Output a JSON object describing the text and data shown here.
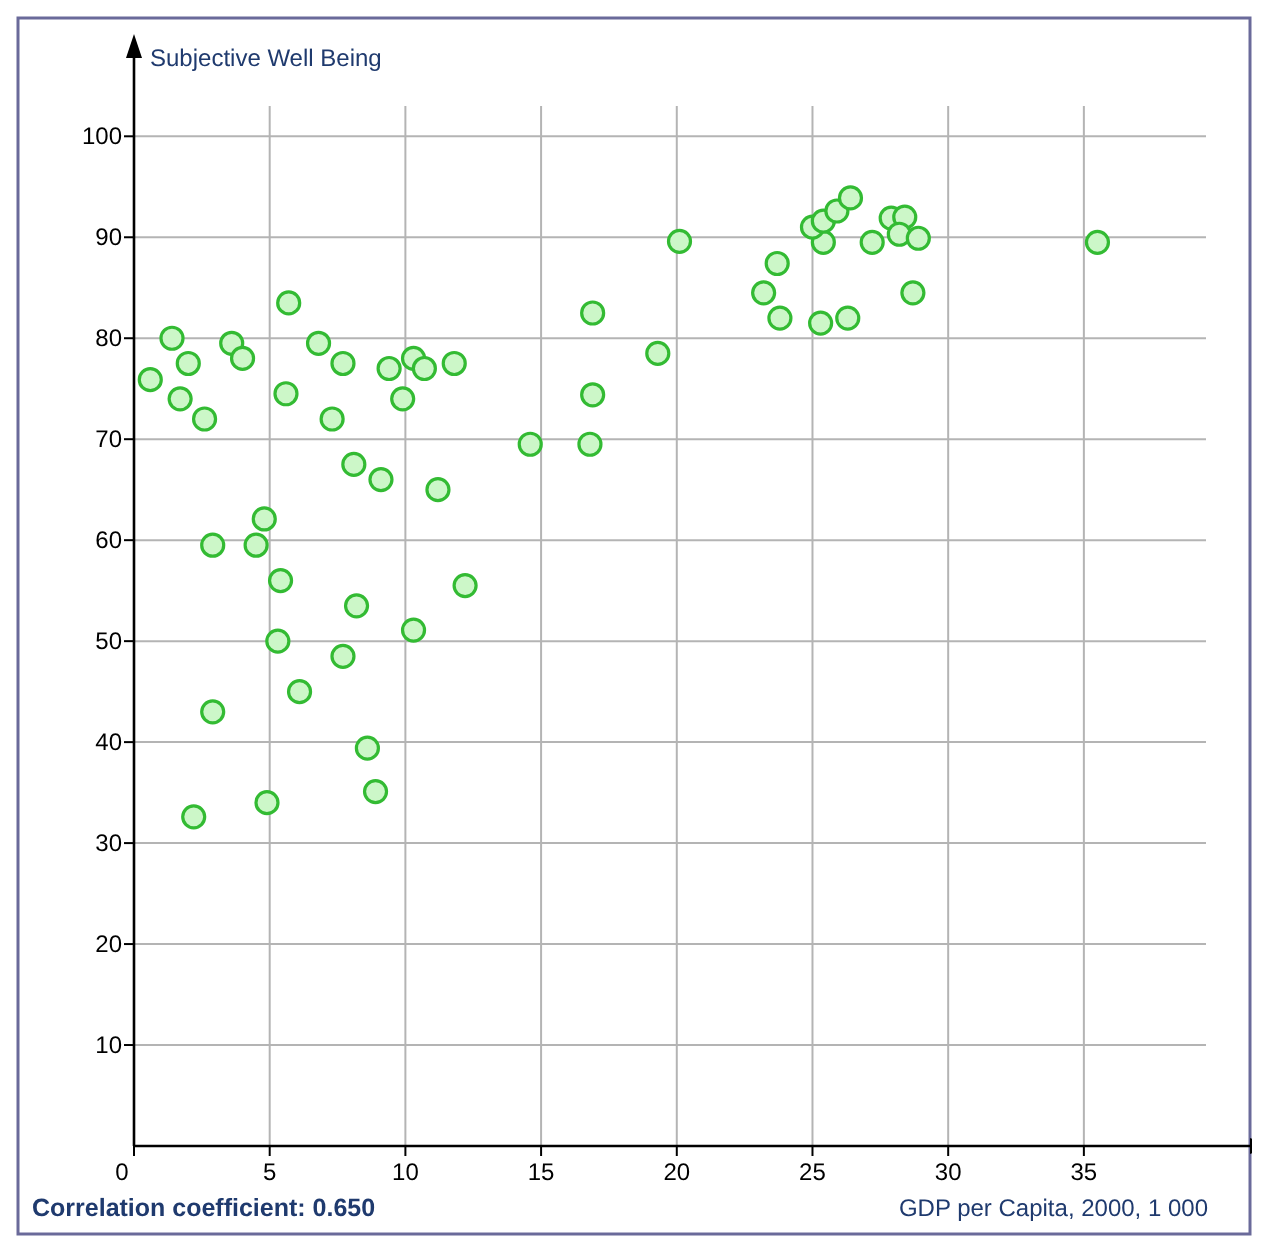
{
  "chart_data": {
    "type": "scatter",
    "xlabel": "GDP per Capita, 2000, 1 000",
    "ylabel": "Subjective Well Being",
    "annotations": [
      "Correlation coefficient: 0.650"
    ],
    "xlim": [
      0,
      39.5
    ],
    "ylim": [
      0,
      103
    ],
    "xticks": [
      0,
      5,
      10,
      15,
      20,
      25,
      30,
      35
    ],
    "yticks": [
      10,
      20,
      30,
      40,
      50,
      60,
      70,
      80,
      90,
      100
    ],
    "grid": true,
    "marker": "circle",
    "series": [
      {
        "color": "#33bb33",
        "x": [
          0.6,
          1.4,
          2.0,
          1.7,
          2.6,
          3.6,
          4.0,
          5.7,
          5.6,
          6.8,
          7.7,
          7.3,
          8.1,
          9.1,
          9.4,
          9.9,
          10.3,
          10.7,
          11.2,
          11.8,
          4.8,
          2.9,
          4.5,
          5.4,
          12.2,
          8.2,
          10.3,
          5.3,
          7.7,
          6.1,
          2.9,
          8.6,
          8.9,
          4.9,
          2.2,
          20.1,
          16.9,
          19.3,
          16.9,
          14.6,
          16.8,
          23.7,
          23.2,
          23.8,
          25.3,
          26.3,
          28.7,
          25.4,
          27.2,
          25.0,
          25.4,
          25.9,
          26.4,
          27.9,
          28.4,
          28.2,
          28.9,
          35.5
        ],
        "values": [
          75.9,
          80.0,
          77.5,
          74.0,
          72.0,
          79.5,
          78.0,
          83.5,
          74.5,
          79.5,
          77.5,
          72.0,
          67.5,
          66.0,
          77.0,
          74.0,
          78.0,
          77.0,
          65.0,
          77.5,
          62.1,
          59.5,
          59.5,
          56.0,
          55.5,
          53.5,
          51.1,
          50.0,
          48.5,
          45.0,
          43.0,
          39.4,
          35.1,
          34.0,
          32.6,
          89.6,
          82.5,
          78.5,
          74.4,
          69.5,
          69.5,
          87.4,
          84.5,
          82.0,
          81.5,
          82.0,
          84.5,
          89.5,
          89.5,
          91.0,
          91.6,
          92.6,
          93.9,
          91.9,
          92.0,
          90.3,
          89.9,
          89.5
        ]
      }
    ]
  }
}
